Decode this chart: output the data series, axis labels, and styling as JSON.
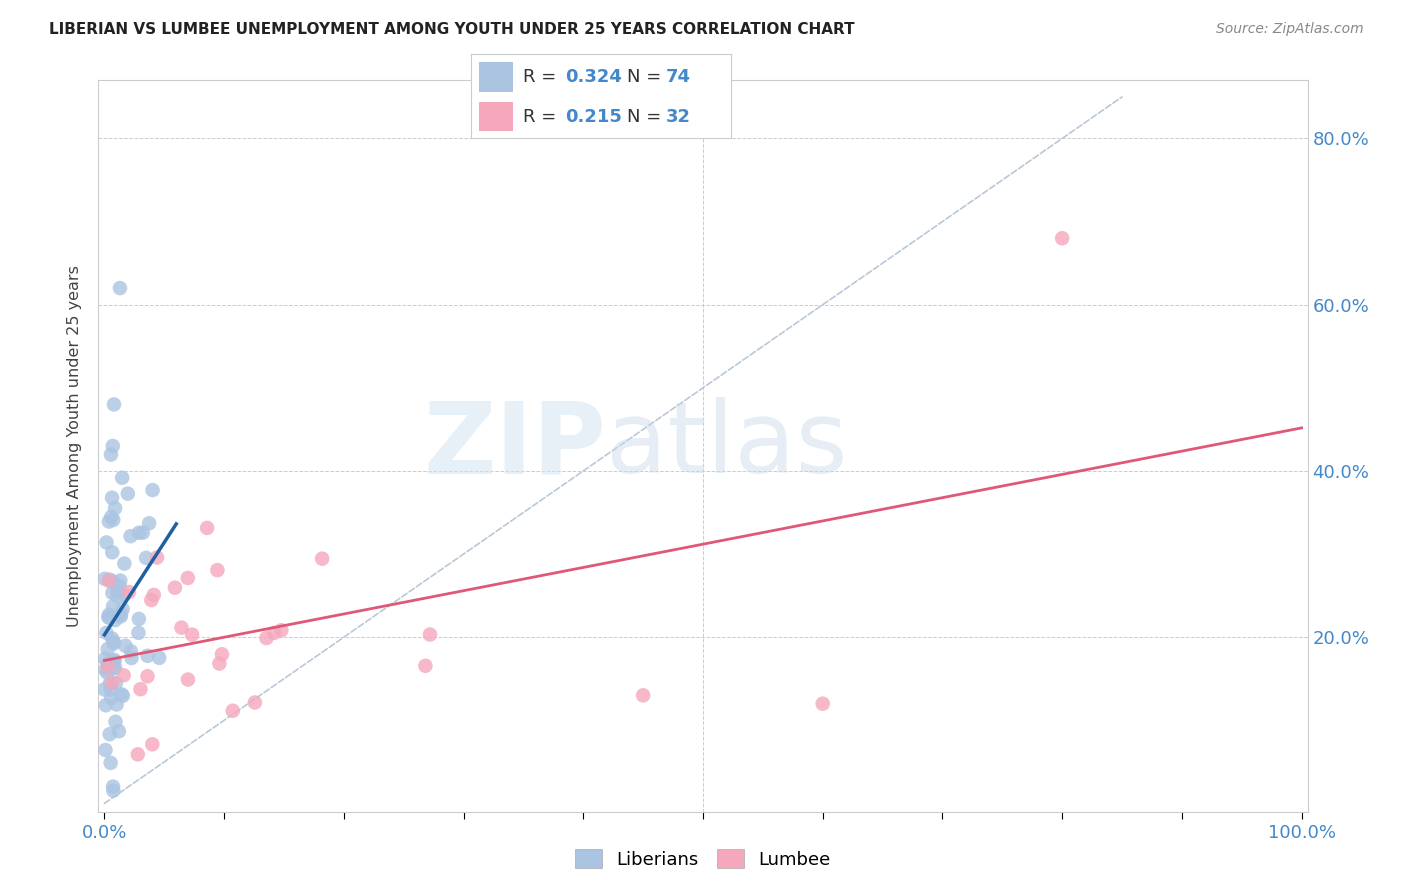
{
  "title": "LIBERIAN VS LUMBEE UNEMPLOYMENT AMONG YOUTH UNDER 25 YEARS CORRELATION CHART",
  "source": "Source: ZipAtlas.com",
  "ylabel": "Unemployment Among Youth under 25 years",
  "legend_bottom": [
    "Liberians",
    "Lumbee"
  ],
  "liberian_R": 0.324,
  "liberian_N": 74,
  "lumbee_R": 0.215,
  "lumbee_N": 32,
  "liberian_color": "#aac4e2",
  "lumbee_color": "#f5a8bc",
  "liberian_line_color": "#2060a0",
  "lumbee_line_color": "#e05878",
  "diagonal_line_color": "#b8c8d8",
  "watermark_zip": "ZIP",
  "watermark_atlas": "atlas",
  "axis_label_color": "#4488cc",
  "tick_color": "#4488cc",
  "title_color": "#222222",
  "source_color": "#888888",
  "grid_color": "#cccccc",
  "background_color": "#ffffff",
  "xlim": [
    0.0,
    1.0
  ],
  "ylim": [
    0.0,
    0.85
  ],
  "yticks": [
    0.0,
    0.2,
    0.4,
    0.6,
    0.8
  ],
  "ytick_labels": [
    "",
    "20.0%",
    "40.0%",
    "60.0%",
    "80.0%"
  ],
  "xtick_left_label": "0.0%",
  "xtick_right_label": "100.0%"
}
